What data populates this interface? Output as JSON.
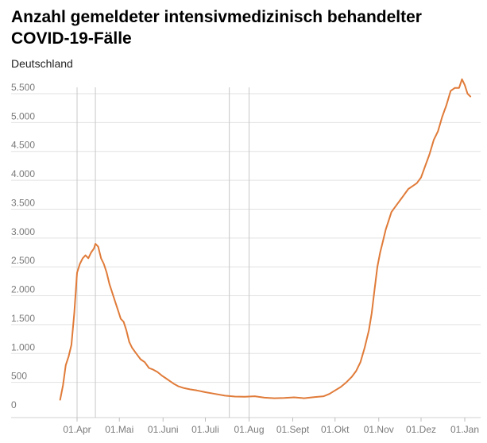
{
  "chart_data": {
    "type": "line",
    "title": "Anzahl gemeldeter intensivmedizinisch behandelter COVID-19-Fälle",
    "subtitle": "Deutschland",
    "xlabel": "",
    "ylabel": "",
    "ylim": [
      0,
      5500
    ],
    "yticks": [
      0,
      500,
      1000,
      1500,
      2000,
      2500,
      3000,
      3500,
      4000,
      4500,
      5000,
      5500
    ],
    "ytick_labels": [
      "0",
      "500",
      "1.000",
      "1.500",
      "2.000",
      "2.500",
      "3.000",
      "3.500",
      "4.000",
      "4.500",
      "5.000",
      "5.500"
    ],
    "xticks": [
      {
        "date": "2020-04-01",
        "label": "01.Apr"
      },
      {
        "date": "2020-05-01",
        "label": "01.Mai"
      },
      {
        "date": "2020-06-01",
        "label": "01.Juni"
      },
      {
        "date": "2020-07-01",
        "label": "01.Juli"
      },
      {
        "date": "2020-08-01",
        "label": "01.Aug"
      },
      {
        "date": "2020-09-01",
        "label": "01.Sept"
      },
      {
        "date": "2020-10-01",
        "label": "01.Okt"
      },
      {
        "date": "2020-11-01",
        "label": "01.Nov"
      },
      {
        "date": "2020-12-01",
        "label": "01.Dez"
      },
      {
        "date": "2021-01-01",
        "label": "01.Jan"
      }
    ],
    "reference_lines": [
      "2020-04-01",
      "2020-04-14",
      "2020-07-18",
      "2020-08-01"
    ],
    "grid": true,
    "line_color": "#e07b39",
    "series": [
      {
        "points": [
          [
            "2020-03-20",
            200
          ],
          [
            "2020-03-22",
            450
          ],
          [
            "2020-03-24",
            800
          ],
          [
            "2020-03-26",
            950
          ],
          [
            "2020-03-28",
            1150
          ],
          [
            "2020-03-30",
            1700
          ],
          [
            "2020-04-01",
            2400
          ],
          [
            "2020-04-03",
            2550
          ],
          [
            "2020-04-05",
            2650
          ],
          [
            "2020-04-07",
            2700
          ],
          [
            "2020-04-09",
            2650
          ],
          [
            "2020-04-11",
            2750
          ],
          [
            "2020-04-13",
            2820
          ],
          [
            "2020-04-14",
            2900
          ],
          [
            "2020-04-16",
            2850
          ],
          [
            "2020-04-18",
            2650
          ],
          [
            "2020-04-20",
            2550
          ],
          [
            "2020-04-22",
            2400
          ],
          [
            "2020-04-24",
            2200
          ],
          [
            "2020-04-26",
            2050
          ],
          [
            "2020-04-28",
            1900
          ],
          [
            "2020-04-30",
            1750
          ],
          [
            "2020-05-02",
            1600
          ],
          [
            "2020-05-04",
            1550
          ],
          [
            "2020-05-06",
            1400
          ],
          [
            "2020-05-08",
            1200
          ],
          [
            "2020-05-10",
            1100
          ],
          [
            "2020-05-13",
            1000
          ],
          [
            "2020-05-16",
            900
          ],
          [
            "2020-05-19",
            850
          ],
          [
            "2020-05-22",
            750
          ],
          [
            "2020-05-25",
            720
          ],
          [
            "2020-05-28",
            680
          ],
          [
            "2020-05-31",
            620
          ],
          [
            "2020-06-03",
            570
          ],
          [
            "2020-06-06",
            520
          ],
          [
            "2020-06-09",
            470
          ],
          [
            "2020-06-12",
            430
          ],
          [
            "2020-06-16",
            400
          ],
          [
            "2020-06-20",
            380
          ],
          [
            "2020-06-25",
            360
          ],
          [
            "2020-07-01",
            330
          ],
          [
            "2020-07-08",
            300
          ],
          [
            "2020-07-15",
            270
          ],
          [
            "2020-07-22",
            255
          ],
          [
            "2020-07-29",
            250
          ],
          [
            "2020-08-05",
            260
          ],
          [
            "2020-08-12",
            235
          ],
          [
            "2020-08-19",
            225
          ],
          [
            "2020-08-26",
            230
          ],
          [
            "2020-09-02",
            240
          ],
          [
            "2020-09-09",
            225
          ],
          [
            "2020-09-16",
            245
          ],
          [
            "2020-09-23",
            260
          ],
          [
            "2020-09-27",
            300
          ],
          [
            "2020-10-01",
            360
          ],
          [
            "2020-10-05",
            420
          ],
          [
            "2020-10-09",
            500
          ],
          [
            "2020-10-13",
            600
          ],
          [
            "2020-10-16",
            700
          ],
          [
            "2020-10-19",
            850
          ],
          [
            "2020-10-22",
            1100
          ],
          [
            "2020-10-25",
            1400
          ],
          [
            "2020-10-27",
            1700
          ],
          [
            "2020-10-29",
            2100
          ],
          [
            "2020-10-31",
            2500
          ],
          [
            "2020-11-02",
            2750
          ],
          [
            "2020-11-04",
            2950
          ],
          [
            "2020-11-06",
            3150
          ],
          [
            "2020-11-08",
            3300
          ],
          [
            "2020-11-10",
            3450
          ],
          [
            "2020-11-13",
            3550
          ],
          [
            "2020-11-16",
            3650
          ],
          [
            "2020-11-19",
            3750
          ],
          [
            "2020-11-22",
            3850
          ],
          [
            "2020-11-25",
            3900
          ],
          [
            "2020-11-28",
            3950
          ],
          [
            "2020-12-01",
            4050
          ],
          [
            "2020-12-04",
            4250
          ],
          [
            "2020-12-07",
            4450
          ],
          [
            "2020-12-10",
            4700
          ],
          [
            "2020-12-13",
            4850
          ],
          [
            "2020-12-16",
            5100
          ],
          [
            "2020-12-19",
            5300
          ],
          [
            "2020-12-22",
            5550
          ],
          [
            "2020-12-25",
            5600
          ],
          [
            "2020-12-28",
            5600
          ],
          [
            "2020-12-30",
            5750
          ],
          [
            "2021-01-01",
            5650
          ],
          [
            "2021-01-03",
            5500
          ],
          [
            "2021-01-05",
            5450
          ]
        ]
      }
    ]
  }
}
